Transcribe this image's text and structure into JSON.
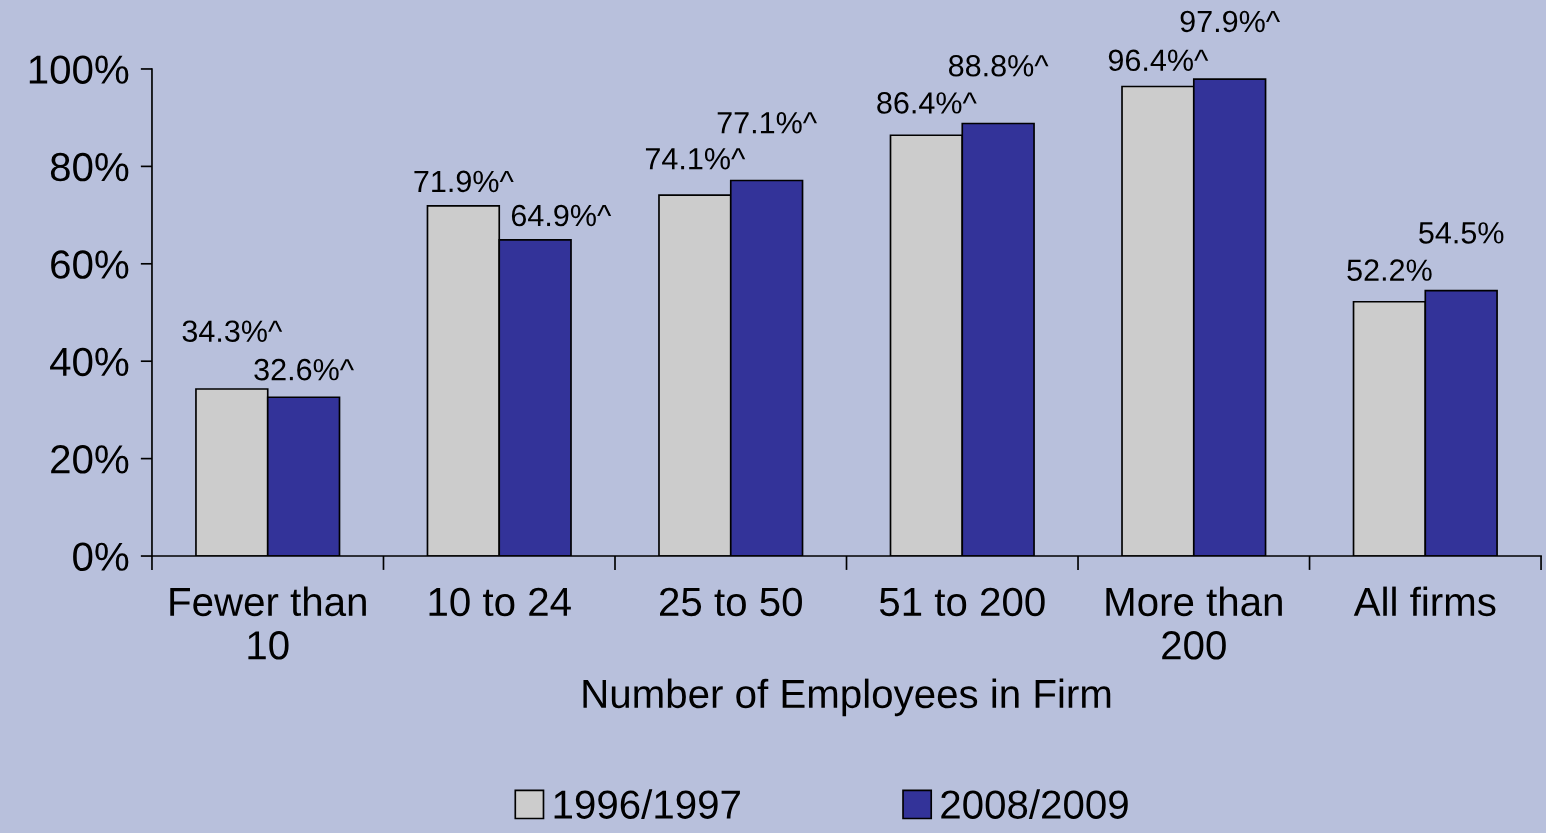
{
  "chart_data": {
    "type": "bar",
    "categories": [
      "Fewer than\n10",
      "10 to 24",
      "25 to 50",
      "51 to 200",
      "More than\n200",
      "All firms"
    ],
    "series": [
      {
        "name": "1996/1997",
        "color": "#cccccc",
        "values": [
          34.3,
          71.9,
          74.1,
          86.4,
          96.4,
          52.2
        ],
        "value_labels": [
          "34.3%^",
          "71.9%^",
          "74.1%^",
          "86.4%^",
          "96.4%^",
          "52.2%"
        ]
      },
      {
        "name": "2008/2009",
        "color": "#333399",
        "values": [
          32.6,
          64.9,
          77.1,
          88.8,
          97.9,
          54.5
        ],
        "value_labels": [
          "32.6%^",
          "64.9%^",
          "77.1%^",
          "88.8%^",
          "97.9%^",
          "54.5%"
        ]
      }
    ],
    "xlabel": "Number of Employees in Firm",
    "ylim": [
      0,
      100
    ],
    "yticks": [
      {
        "value": 0,
        "label": "0%"
      },
      {
        "value": 20,
        "label": "20%"
      },
      {
        "value": 40,
        "label": "40%"
      },
      {
        "value": 60,
        "label": "60%"
      },
      {
        "value": 80,
        "label": "80%"
      },
      {
        "value": 100,
        "label": "100%"
      }
    ],
    "legend": "bottom"
  }
}
